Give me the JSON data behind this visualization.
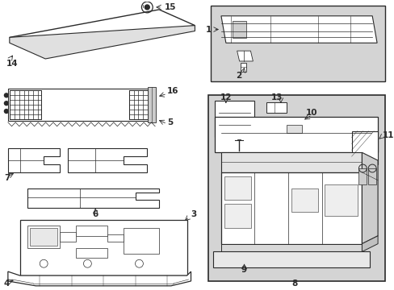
{
  "bg_color": "#ffffff",
  "line_color": "#2a2a2a",
  "box_fill": "#d4d4d4",
  "lw": 0.7
}
